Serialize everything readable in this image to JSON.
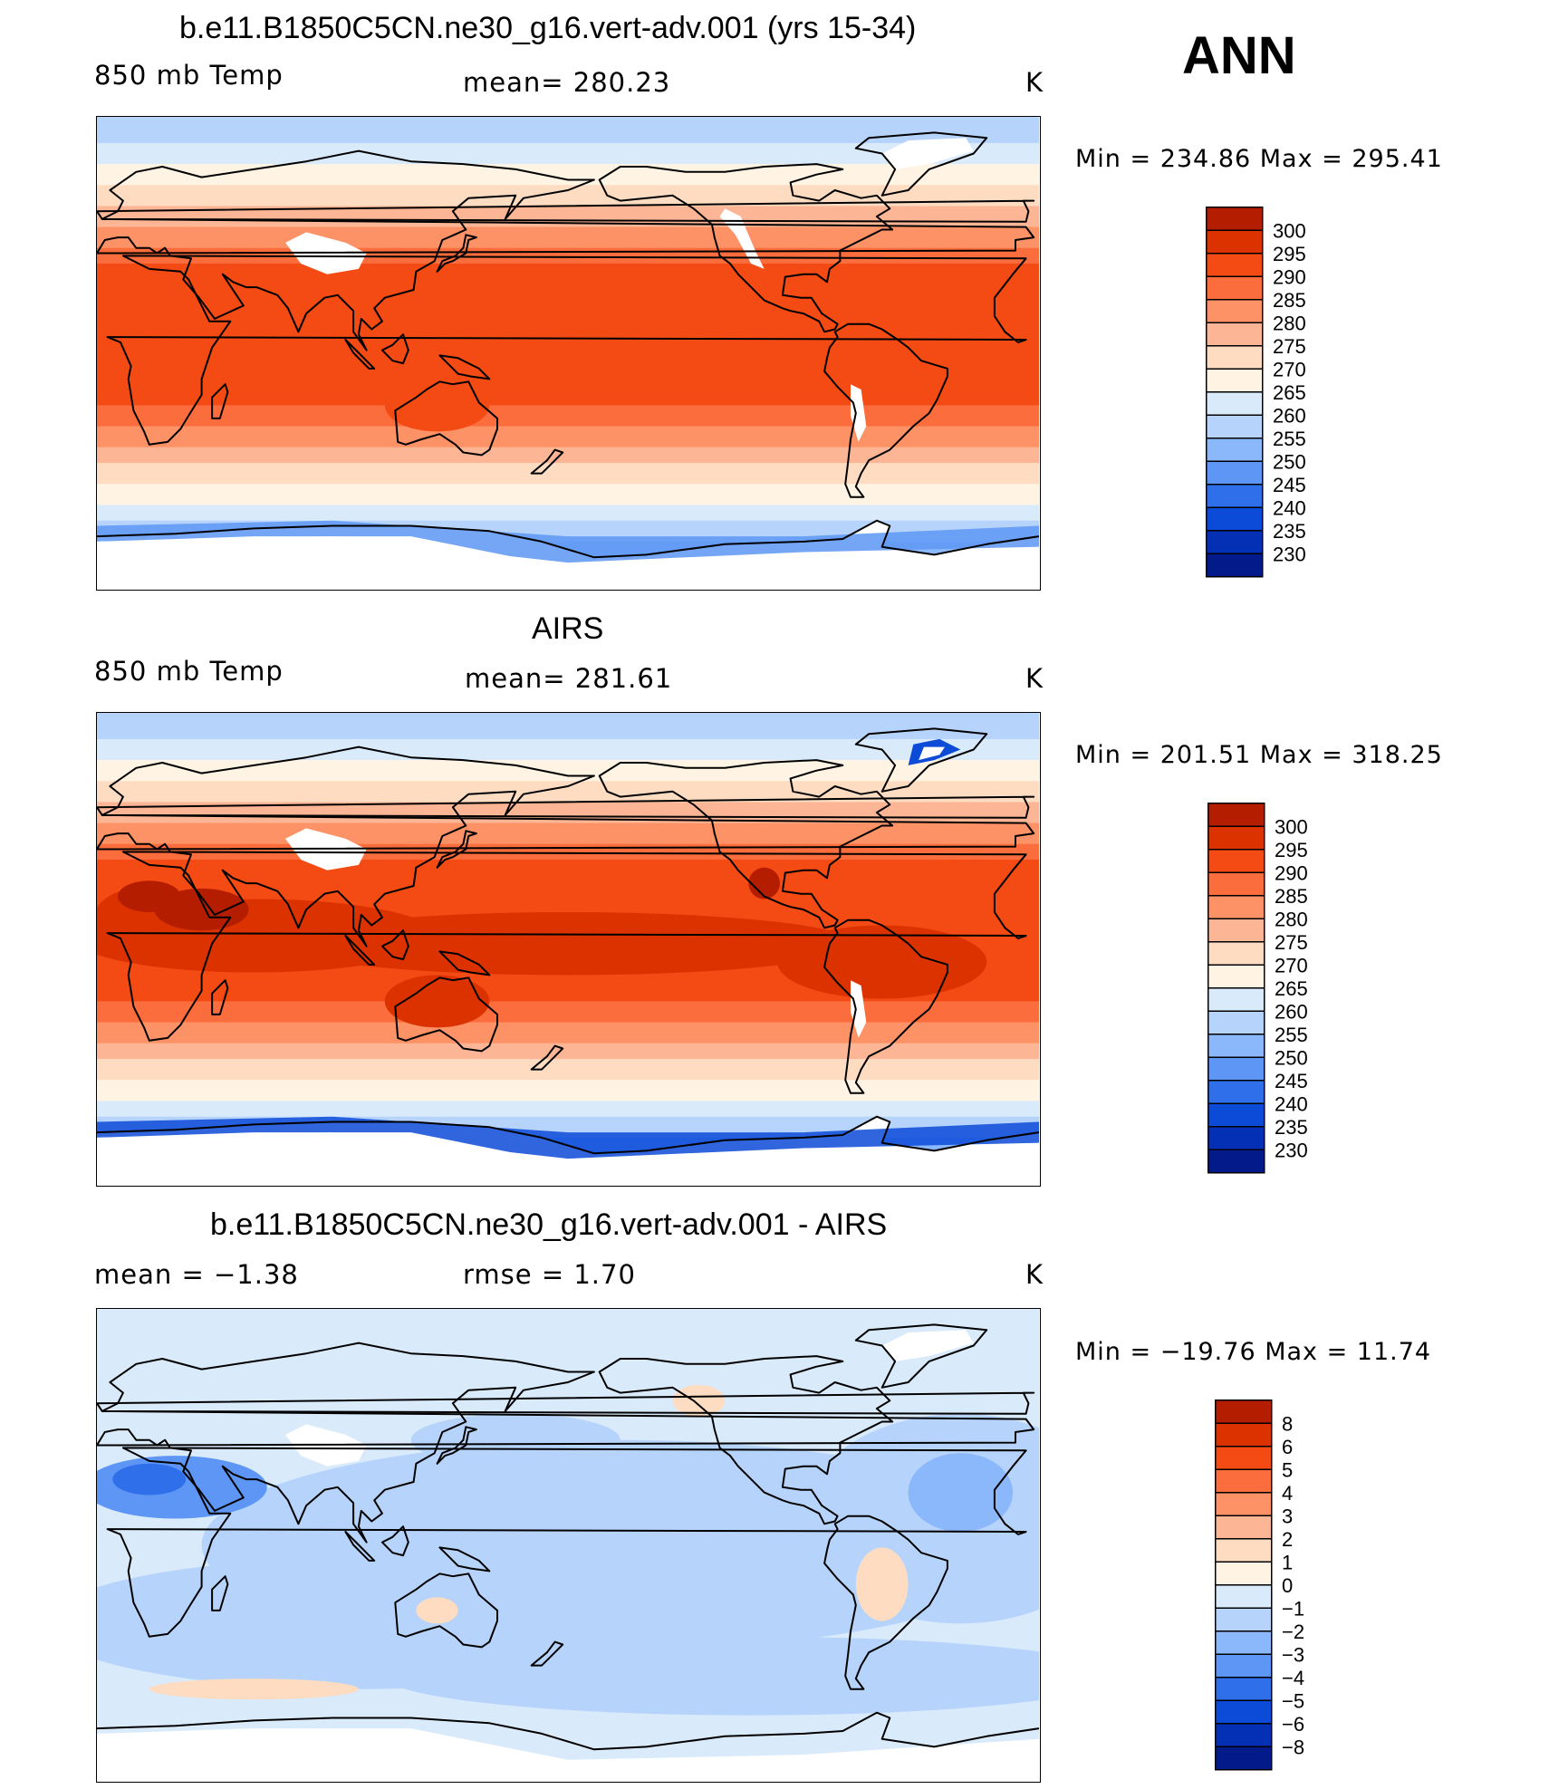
{
  "header": {
    "season": "ANN"
  },
  "panels": [
    {
      "title": "b.e11.B1850C5CN.ne30_g16.vert-adv.001 (yrs 15-34)",
      "left": "850 mb Temp",
      "center": "mean=  280.23",
      "units": "K",
      "minmax": "Min  =  234.86  Max  =  295.41"
    },
    {
      "title": "AIRS",
      "left": "850 mb Temp",
      "center": "mean=  281.61",
      "units": "K",
      "minmax": "Min  =  201.51  Max  =  318.25"
    },
    {
      "title": "b.e11.B1850C5CN.ne30_g16.vert-adv.001 - AIRS",
      "left": "mean  =    −1.38",
      "center": "rmse  =     1.70",
      "units": "K",
      "minmax": "Min  =  −19.76  Max  =    11.74"
    }
  ],
  "chart_data": [
    {
      "type": "heatmap",
      "title": "b.e11.B1850C5CN.ne30_g16.vert-adv.001 (yrs 15-34)",
      "variable": "850 mb Temp",
      "units": "K",
      "mean": 280.23,
      "min": 234.86,
      "max": 295.41,
      "colorbar_levels": [
        300,
        295,
        290,
        285,
        280,
        275,
        270,
        265,
        260,
        255,
        250,
        245,
        240,
        235,
        230
      ],
      "colorbar_colors": [
        "#8a0000",
        "#b51d00",
        "#dc3200",
        "#f44a14",
        "#fb6d3c",
        "#fc9266",
        "#fdb695",
        "#fddcc2",
        "#fff3e3",
        "#d9eafb",
        "#b6d4fb",
        "#8bb8fa",
        "#5d96f5",
        "#2f70ea",
        "#0c4ad8",
        "#0330b4",
        "#021a8a",
        "#01087c"
      ]
    },
    {
      "type": "heatmap",
      "title": "AIRS",
      "variable": "850 mb Temp",
      "units": "K",
      "mean": 281.61,
      "min": 201.51,
      "max": 318.25,
      "colorbar_levels": [
        300,
        295,
        290,
        285,
        280,
        275,
        270,
        265,
        260,
        255,
        250,
        245,
        240,
        235,
        230
      ],
      "colorbar_colors": [
        "#8a0000",
        "#b51d00",
        "#dc3200",
        "#f44a14",
        "#fb6d3c",
        "#fc9266",
        "#fdb695",
        "#fddcc2",
        "#fff3e3",
        "#d9eafb",
        "#b6d4fb",
        "#8bb8fa",
        "#5d96f5",
        "#2f70ea",
        "#0c4ad8",
        "#0330b4",
        "#021a8a",
        "#01087c"
      ]
    },
    {
      "type": "heatmap",
      "title": "b.e11.B1850C5CN.ne30_g16.vert-adv.001 - AIRS",
      "units": "K",
      "mean": -1.38,
      "rmse": 1.7,
      "min": -19.76,
      "max": 11.74,
      "colorbar_levels": [
        "8",
        "6",
        "5",
        "4",
        "3",
        "2",
        "1",
        "0",
        "−1",
        "−2",
        "−3",
        "−4",
        "−5",
        "−6",
        "−8"
      ],
      "colorbar_colors": [
        "#8a0000",
        "#b51d00",
        "#dc3200",
        "#f44a14",
        "#fb6d3c",
        "#fc9266",
        "#fdb695",
        "#fddcc2",
        "#fff3e3",
        "#d9eafb",
        "#b6d4fb",
        "#8bb8fa",
        "#5d96f5",
        "#2f70ea",
        "#0c4ad8",
        "#0330b4",
        "#021a8a",
        "#01087c"
      ]
    }
  ]
}
